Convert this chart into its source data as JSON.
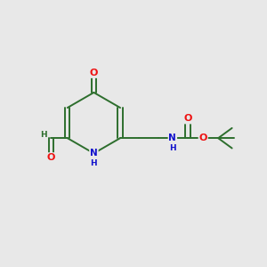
{
  "background_color": "#e8e8e8",
  "bond_color": "#2d6e2d",
  "atom_colors": {
    "O": "#ee1111",
    "N": "#1111cc",
    "H": "#2d6e2d"
  },
  "figsize": [
    3.0,
    3.0
  ],
  "dpi": 100,
  "xlim": [
    0,
    10
  ],
  "ylim": [
    0,
    10
  ]
}
